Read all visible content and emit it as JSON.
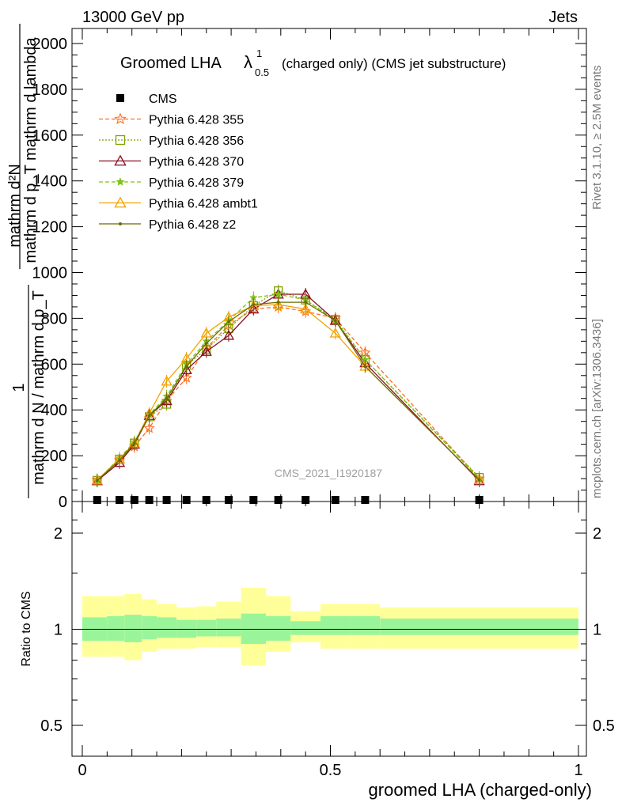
{
  "header": {
    "left": "13000 GeV pp",
    "right": "Jets"
  },
  "side_texts": {
    "rivet": "Rivet 3.1.10, ≥ 2.5M events",
    "mcplots": "mcplots.cern.ch [arXiv:1306.3436]"
  },
  "watermark": "CMS_2021_I1920187",
  "main_title": {
    "prefix": "Groomed LHA",
    "lambda": "λ",
    "sup": "1",
    "sub": "0.5",
    "suffix": "(charged only) (CMS jet substructure)"
  },
  "ylabel_main": {
    "line1": "mathrm d²N",
    "line2": "mathrm d p_T mathrm d lambda",
    "numer": "1",
    "denom": "mathrm d N / mathrm d p_T"
  },
  "ylabel_ratio": "Ratio to CMS",
  "xlabel": "groomed LHA (charged-only)",
  "colors": {
    "cms": "#000000",
    "p355": "#ff6f1f",
    "p356": "#7ea000",
    "p370": "#8b1020",
    "p379": "#7ec11a",
    "ambt1": "#f2a300",
    "z2": "#6b6b00",
    "band_inner": "#9af59a",
    "band_outer": "#ffff99"
  },
  "chart_data": [
    {
      "type": "line",
      "panel": "main",
      "xlim": [
        0,
        1
      ],
      "ylim": [
        0,
        2000
      ],
      "yticks": [
        0,
        200,
        400,
        600,
        800,
        1000,
        1200,
        1400,
        1600,
        1800,
        2000
      ],
      "ytick_labels": [
        "0",
        "200",
        "400",
        "600",
        "800",
        "1000",
        "1200",
        "1400",
        "1600",
        "1800",
        "2000"
      ],
      "x": [
        0.03,
        0.075,
        0.105,
        0.135,
        0.17,
        0.21,
        0.25,
        0.295,
        0.345,
        0.395,
        0.45,
        0.51,
        0.57,
        0.8
      ],
      "series": [
        {
          "name": "CMS",
          "key": "cms",
          "marker": "square",
          "values": [
            0,
            0,
            0,
            0,
            0,
            0,
            0,
            0,
            0,
            0,
            0,
            0,
            0,
            0
          ]
        },
        {
          "name": "Pythia 6.428 355",
          "key": "p355",
          "marker": "star",
          "dash": "5,3",
          "values": [
            95,
            180,
            240,
            320,
            440,
            540,
            670,
            770,
            840,
            850,
            830,
            800,
            650,
            100
          ]
        },
        {
          "name": "Pythia 6.428 356",
          "key": "p356",
          "marker": "square-open",
          "dash": "2,2",
          "values": [
            92,
            185,
            255,
            370,
            425,
            595,
            665,
            755,
            855,
            920,
            880,
            795,
            620,
            105
          ]
        },
        {
          "name": "Pythia 6.428 370",
          "key": "p370",
          "marker": "triangle-open",
          "dash": "",
          "values": [
            90,
            170,
            250,
            375,
            440,
            575,
            655,
            725,
            840,
            905,
            905,
            790,
            605,
            90
          ]
        },
        {
          "name": "Pythia 6.428 379",
          "key": "p379",
          "marker": "star-small",
          "dash": "5,3",
          "values": [
            92,
            190,
            260,
            380,
            460,
            600,
            700,
            790,
            890,
            905,
            880,
            790,
            620,
            100
          ]
        },
        {
          "name": "Pythia 6.428 ambt1",
          "key": "ambt1",
          "marker": "triangle-open",
          "dash": "",
          "values": [
            93,
            185,
            255,
            385,
            525,
            625,
            735,
            805,
            855,
            860,
            840,
            735,
            590,
            95
          ]
        },
        {
          "name": "Pythia 6.428 z2",
          "key": "z2",
          "marker": "dot",
          "dash": "",
          "values": [
            92,
            180,
            255,
            375,
            450,
            590,
            690,
            785,
            860,
            870,
            870,
            790,
            590,
            95
          ]
        }
      ]
    },
    {
      "type": "area",
      "panel": "ratio",
      "xlim": [
        0,
        1
      ],
      "ylim": [
        0.4,
        2.35
      ],
      "log_y": true,
      "yticks": [
        0.5,
        1,
        2
      ],
      "ytick_labels": [
        "0.5",
        "1",
        "2"
      ],
      "xticks": [
        0,
        0.5,
        1
      ],
      "xtick_labels": [
        "0",
        "0.5",
        "1"
      ],
      "bin_edges": [
        0,
        0.05,
        0.085,
        0.12,
        0.15,
        0.19,
        0.23,
        0.27,
        0.32,
        0.37,
        0.42,
        0.48,
        0.54,
        0.6,
        1.0
      ],
      "inner_band": {
        "lo": [
          0.92,
          0.92,
          0.91,
          0.93,
          0.94,
          0.94,
          0.95,
          0.95,
          0.9,
          0.92,
          0.96,
          0.96,
          0.96,
          0.96
        ],
        "hi": [
          1.09,
          1.1,
          1.11,
          1.1,
          1.09,
          1.07,
          1.07,
          1.08,
          1.12,
          1.1,
          1.06,
          1.1,
          1.1,
          1.08
        ]
      },
      "outer_band": {
        "lo": [
          0.82,
          0.82,
          0.8,
          0.85,
          0.87,
          0.87,
          0.88,
          0.88,
          0.77,
          0.85,
          0.91,
          0.87,
          0.87,
          0.87
        ],
        "hi": [
          1.27,
          1.27,
          1.29,
          1.24,
          1.2,
          1.17,
          1.18,
          1.22,
          1.35,
          1.27,
          1.14,
          1.2,
          1.2,
          1.17
        ]
      },
      "reference": 1
    }
  ]
}
